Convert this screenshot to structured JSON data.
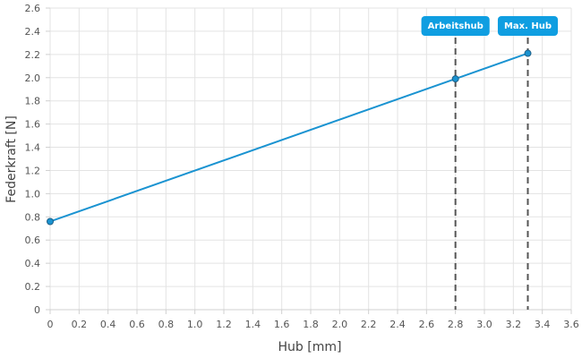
{
  "chart_data": {
    "type": "line",
    "xlabel": "Hub [mm]",
    "ylabel": "Federkraft [N]",
    "xlim": [
      0,
      3.6
    ],
    "ylim": [
      0,
      2.6
    ],
    "x_ticks": [
      "0",
      "0.2",
      "0.4",
      "0.6",
      "0.8",
      "1.0",
      "1.2",
      "1.4",
      "1.6",
      "1.8",
      "2.0",
      "2.2",
      "2.4",
      "2.6",
      "2.8",
      "3.0",
      "3.2",
      "3.4",
      "3.6"
    ],
    "y_ticks": [
      "0",
      "0.2",
      "0.4",
      "0.6",
      "0.8",
      "1.0",
      "1.2",
      "1.4",
      "1.6",
      "1.8",
      "2.0",
      "2.2",
      "2.4",
      "2.6"
    ],
    "grid": true,
    "series": [
      {
        "color": "#1a93d1",
        "x": [
          0,
          2.8,
          3.3
        ],
        "y": [
          0.76,
          1.99,
          2.21
        ]
      }
    ],
    "markers": [
      {
        "label": "Arbeitshub",
        "x": 2.8
      },
      {
        "label": "Max. Hub",
        "x": 3.3
      }
    ],
    "marker_color": "#0f9ee1"
  }
}
